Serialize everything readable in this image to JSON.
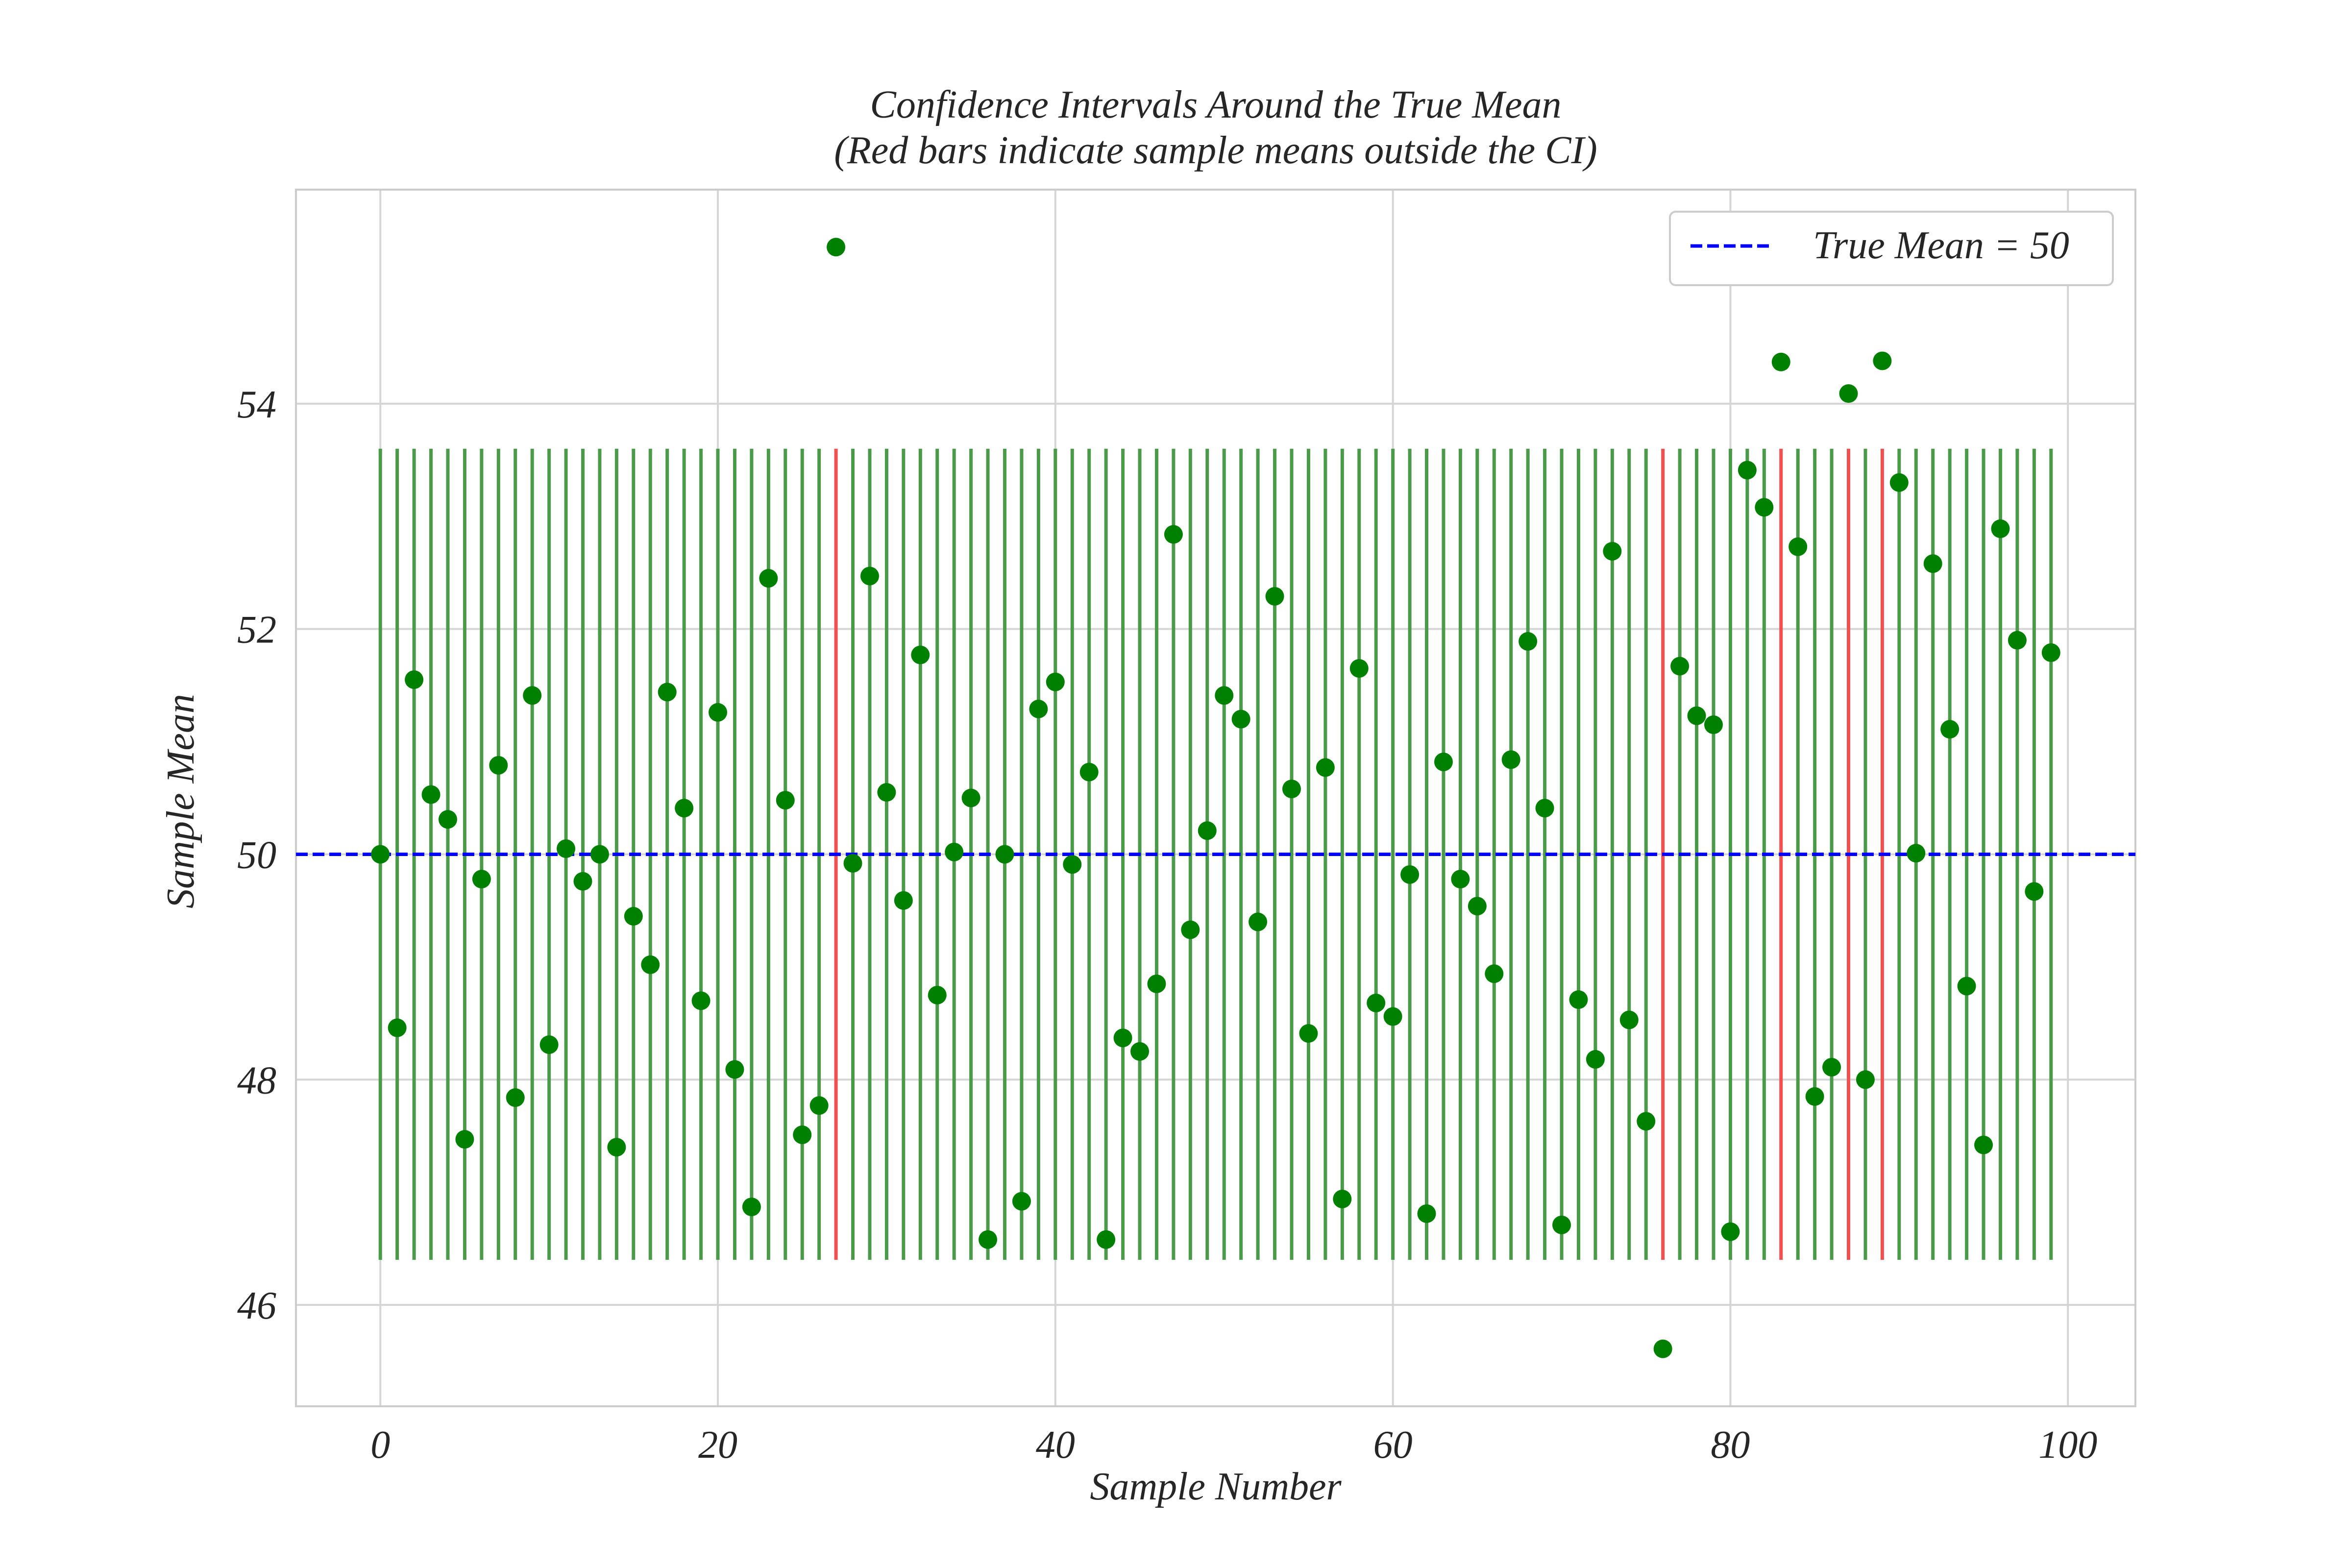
{
  "chart_data": {
    "type": "scatter",
    "title_line1": "Confidence Intervals Around the True Mean",
    "title_line2": "(Red bars indicate sample means outside the CI)",
    "xlabel": "Sample Number",
    "ylabel": "Sample Mean",
    "xlim": [
      -5,
      104
    ],
    "ylim": [
      45.1,
      55.9
    ],
    "xticks": [
      0,
      20,
      40,
      60,
      80,
      100
    ],
    "yticks": [
      46,
      48,
      50,
      52,
      54
    ],
    "grid": true,
    "legend": {
      "placement": "top-right",
      "label": "True Mean = 50"
    },
    "true_mean": 50,
    "ci": {
      "lower": 46.4,
      "upper": 53.6
    },
    "colors": {
      "point": "#008000",
      "in_ci": "#4a9a4a",
      "out_ci": "#f05050",
      "true_mean": "#0000ff",
      "grid": "#d5d5d5",
      "frame": "#cccccc",
      "text": "#262626"
    },
    "x": [
      0,
      1,
      2,
      3,
      4,
      5,
      6,
      7,
      8,
      9,
      10,
      11,
      12,
      13,
      14,
      15,
      16,
      17,
      18,
      19,
      20,
      21,
      22,
      23,
      24,
      25,
      26,
      27,
      28,
      29,
      30,
      31,
      32,
      33,
      34,
      35,
      36,
      37,
      38,
      39,
      40,
      41,
      42,
      43,
      44,
      45,
      46,
      47,
      48,
      49,
      50,
      51,
      52,
      53,
      54,
      55,
      56,
      57,
      58,
      59,
      60,
      61,
      62,
      63,
      64,
      65,
      66,
      67,
      68,
      69,
      70,
      71,
      72,
      73,
      74,
      75,
      76,
      77,
      78,
      79,
      80,
      81,
      82,
      83,
      84,
      85,
      86,
      87,
      88,
      89,
      90,
      91,
      92,
      93,
      94,
      95,
      96,
      97,
      98,
      99
    ],
    "values": [
      50.0,
      48.46,
      51.55,
      50.53,
      50.31,
      47.47,
      49.78,
      50.79,
      47.84,
      51.41,
      48.31,
      50.05,
      49.76,
      50.0,
      47.4,
      49.45,
      49.02,
      51.44,
      50.41,
      48.7,
      51.26,
      48.09,
      46.87,
      52.45,
      50.48,
      47.51,
      47.77,
      55.39,
      49.92,
      52.47,
      50.55,
      49.59,
      51.77,
      48.75,
      50.02,
      50.5,
      46.58,
      50.0,
      46.92,
      51.29,
      51.53,
      49.91,
      50.73,
      46.58,
      48.37,
      48.25,
      48.85,
      52.84,
      49.33,
      50.21,
      51.41,
      51.2,
      49.4,
      52.29,
      50.58,
      48.41,
      50.77,
      46.94,
      51.65,
      48.68,
      48.56,
      49.82,
      46.81,
      50.82,
      49.78,
      49.54,
      48.94,
      50.84,
      51.89,
      50.41,
      46.71,
      48.71,
      48.18,
      52.69,
      48.53,
      47.63,
      45.61,
      51.67,
      51.23,
      51.15,
      46.65,
      53.41,
      53.08,
      54.37,
      52.73,
      47.85,
      48.11,
      54.09,
      48.0,
      54.38,
      53.3,
      50.01,
      52.58,
      51.11,
      48.83,
      47.42,
      52.89,
      51.9,
      49.67,
      51.79
    ],
    "outside_ci": [
      27,
      76,
      83,
      87,
      89
    ]
  }
}
